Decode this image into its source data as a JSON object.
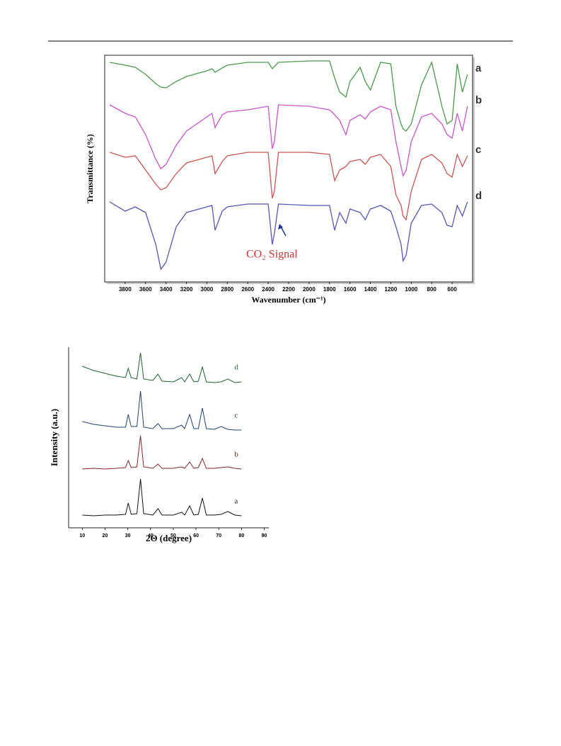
{
  "chart_data": [
    {
      "type": "line",
      "xlabel": "Wavenumber (cm⁻¹)",
      "ylabel": "Transmittance (%)",
      "annotation": "CO₂ Signal",
      "x": [
        3950,
        3800,
        3700,
        3600,
        3500,
        3450,
        3400,
        3300,
        3200,
        3000,
        2950,
        2920,
        2850,
        2800,
        2600,
        2400,
        2360,
        2340,
        2300,
        2000,
        1800,
        1750,
        1700,
        1640,
        1600,
        1500,
        1450,
        1400,
        1300,
        1200,
        1150,
        1100,
        1080,
        1050,
        1000,
        900,
        800,
        700,
        650,
        600,
        550,
        500,
        450
      ],
      "xlim": [
        4000,
        400
      ],
      "xticks": [
        3800,
        3600,
        3400,
        3200,
        3000,
        2800,
        2600,
        2400,
        2200,
        2000,
        1800,
        1600,
        1400,
        1200,
        1000,
        800,
        600
      ],
      "ylim": [
        0,
        320
      ],
      "series": [
        {
          "name": "a",
          "color": "#4a9a4a",
          "values": [
            310,
            306,
            303,
            293,
            280,
            275,
            274,
            283,
            290,
            298,
            301,
            296,
            302,
            306,
            310,
            310,
            301,
            304,
            310,
            312,
            312,
            288,
            268,
            261,
            283,
            303,
            283,
            271,
            310,
            308,
            248,
            223,
            216,
            213,
            223,
            278,
            310,
            248,
            223,
            228,
            308,
            268,
            293
          ]
        },
        {
          "name": "b",
          "color": "#cc55cc",
          "values": [
            250,
            238,
            233,
            208,
            173,
            160,
            166,
            193,
            213,
            233,
            238,
            218,
            236,
            240,
            243,
            248,
            188,
            198,
            250,
            248,
            243,
            236,
            228,
            208,
            228,
            236,
            230,
            240,
            248,
            243,
            198,
            163,
            150,
            158,
            198,
            233,
            238,
            223,
            208,
            203,
            238,
            213,
            248
          ]
        },
        {
          "name": "c",
          "color": "#cc5555",
          "values": [
            183,
            176,
            178,
            158,
            138,
            130,
            133,
            153,
            168,
            176,
            178,
            153,
            170,
            178,
            183,
            183,
            118,
            128,
            183,
            183,
            180,
            143,
            158,
            163,
            170,
            173,
            166,
            176,
            180,
            163,
            123,
            108,
            93,
            88,
            128,
            173,
            180,
            168,
            153,
            148,
            180,
            163,
            178
          ]
        },
        {
          "name": "d",
          "color": "#5555bb",
          "values": [
            113,
            100,
            106,
            98,
            53,
            18,
            28,
            78,
            98,
            106,
            108,
            73,
            100,
            106,
            110,
            110,
            53,
            68,
            110,
            108,
            108,
            73,
            98,
            83,
            103,
            98,
            88,
            103,
            108,
            100,
            78,
            53,
            30,
            38,
            83,
            108,
            110,
            98,
            80,
            78,
            108,
            93,
            113
          ]
        }
      ]
    },
    {
      "type": "line",
      "xlabel": "2Θ (degree)",
      "ylabel": "Intensity (a.u.)",
      "x": [
        10,
        15,
        20,
        25,
        29,
        30.2,
        31.5,
        34,
        35.6,
        37,
        41,
        43.3,
        45,
        50,
        53.7,
        55,
        57.2,
        59,
        61,
        62.8,
        64.5,
        68,
        71,
        74,
        77,
        80
      ],
      "xlim": [
        4,
        92
      ],
      "xticks": [
        10,
        20,
        30,
        40,
        50,
        60,
        70,
        80,
        90
      ],
      "ylim": [
        0,
        255
      ],
      "series": [
        {
          "name": "a",
          "color": "#111111",
          "values": [
            18,
            17,
            18,
            18,
            19,
            35,
            19,
            20,
            69,
            20,
            18,
            27,
            18,
            18,
            22,
            18,
            31,
            18,
            19,
            42,
            18,
            18,
            19,
            23,
            18,
            17
          ]
        },
        {
          "name": "b",
          "color": "#882222",
          "values": [
            83,
            84,
            83,
            84,
            85,
            95,
            85,
            86,
            130,
            86,
            84,
            90,
            84,
            84,
            86,
            84,
            93,
            84,
            85,
            98,
            84,
            84,
            85,
            86,
            84,
            83
          ]
        },
        {
          "name": "c",
          "color": "#1f3f6f",
          "values": [
            150,
            146,
            144,
            142,
            142,
            160,
            143,
            143,
            193,
            142,
            140,
            147,
            140,
            140,
            145,
            140,
            160,
            140,
            140,
            169,
            140,
            139,
            143,
            139,
            138,
            138
          ]
        },
        {
          "name": "d",
          "color": "#1f5f2f",
          "values": [
            228,
            222,
            218,
            214,
            212,
            225,
            212,
            210,
            247,
            210,
            208,
            217,
            207,
            206,
            212,
            206,
            217,
            206,
            207,
            227,
            206,
            205,
            206,
            210,
            205,
            206
          ]
        }
      ]
    }
  ]
}
